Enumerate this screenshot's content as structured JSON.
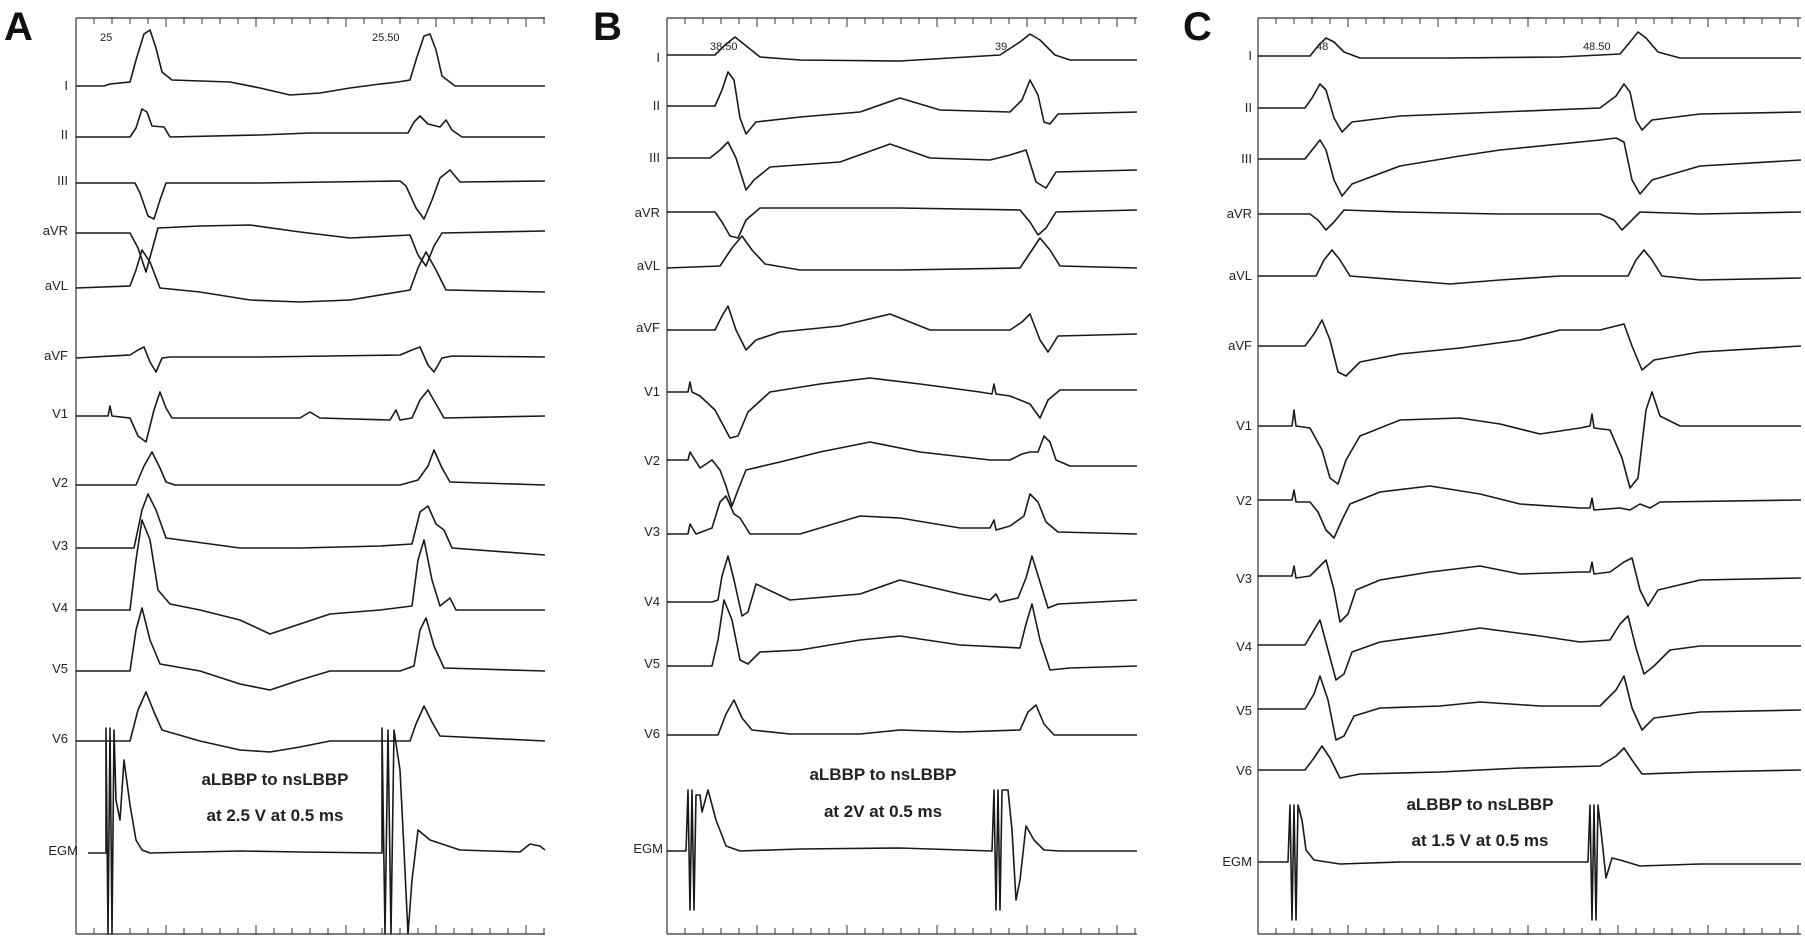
{
  "figure": {
    "panels": [
      {
        "letter": "A",
        "time_labels": [
          "25",
          "25.50"
        ],
        "leads": [
          "I",
          "II",
          "III",
          "aVR",
          "aVL",
          "aVF",
          "V1",
          "V2",
          "V3",
          "V4",
          "V5",
          "V6"
        ],
        "egm_label": "EGM",
        "annotation_line1": "aLBBP to nsLBBP",
        "annotation_line2": "at 2.5 V at 0.5 ms"
      },
      {
        "letter": "B",
        "time_labels": [
          "38.50",
          "39"
        ],
        "leads": [
          "I",
          "II",
          "III",
          "aVR",
          "aVL",
          "aVF",
          "V1",
          "V2",
          "V3",
          "V4",
          "V5",
          "V6"
        ],
        "egm_label": "EGM",
        "annotation_line1": "aLBBP to nsLBBP",
        "annotation_line2": "at 2V at 0.5 ms"
      },
      {
        "letter": "C",
        "time_labels": [
          "48",
          "48.50"
        ],
        "leads": [
          "I",
          "II",
          "III",
          "aVR",
          "aVL",
          "aVF",
          "V1",
          "V2",
          "V3",
          "V4",
          "V5",
          "V6"
        ],
        "egm_label": "EGM",
        "annotation_line1": "aLBBP to nsLBBP",
        "annotation_line2": "at 1.5 V at 0.5 ms"
      }
    ]
  }
}
